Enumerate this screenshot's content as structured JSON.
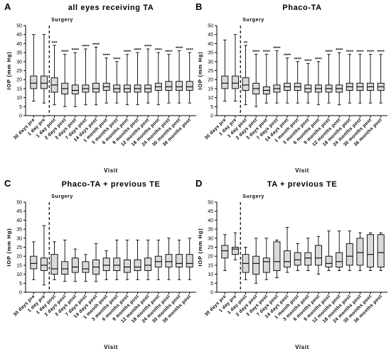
{
  "chart_data": [
    {
      "type": "boxplot",
      "panel_letter": "A",
      "title": "all eyes receiving TA",
      "xlabel": "Visit",
      "ylabel": "IOP (mm Hg)",
      "ylim": [
        0,
        50
      ],
      "yticks": [
        0,
        5,
        10,
        15,
        20,
        25,
        30,
        35,
        40,
        45,
        50
      ],
      "surgery_label": "Surgery",
      "surgery_after_index": 1,
      "categories": [
        "30 days pre",
        "1 day pre",
        "1 day post",
        "2 days post",
        "3 days post",
        "7 days post",
        "14 days post",
        "1 month post",
        "3 months post",
        "6 months post",
        "9 months post",
        "12 months post",
        "18 months post",
        "24 months post",
        "30 months post",
        "36 months post"
      ],
      "boxes": [
        {
          "min": 8,
          "q1": 15,
          "median": 18,
          "q3": 22,
          "max": 45
        },
        {
          "min": 7,
          "q1": 15,
          "median": 18,
          "q3": 22,
          "max": 45
        },
        {
          "min": 6,
          "q1": 13,
          "median": 17,
          "q3": 21,
          "max": 39
        },
        {
          "min": 5,
          "q1": 12,
          "median": 15,
          "q3": 18,
          "max": 34
        },
        {
          "min": 5,
          "q1": 12,
          "median": 14,
          "q3": 17,
          "max": 35
        },
        {
          "min": 6,
          "q1": 13,
          "median": 15,
          "q3": 17,
          "max": 37
        },
        {
          "min": 6,
          "q1": 13,
          "median": 15,
          "q3": 18,
          "max": 38
        },
        {
          "min": 7,
          "q1": 14,
          "median": 16,
          "q3": 18,
          "max": 32
        },
        {
          "min": 7,
          "q1": 13,
          "median": 15,
          "q3": 17,
          "max": 30
        },
        {
          "min": 6,
          "q1": 13,
          "median": 15,
          "q3": 17,
          "max": 34
        },
        {
          "min": 6,
          "q1": 13,
          "median": 15,
          "q3": 17,
          "max": 35
        },
        {
          "min": 7,
          "q1": 13,
          "median": 15,
          "q3": 17,
          "max": 37
        },
        {
          "min": 6,
          "q1": 14,
          "median": 16,
          "q3": 18,
          "max": 35
        },
        {
          "min": 7,
          "q1": 14,
          "median": 16,
          "q3": 19,
          "max": 34
        },
        {
          "min": 7,
          "q1": 14,
          "median": 16,
          "q3": 19,
          "max": 36
        },
        {
          "min": 7,
          "q1": 14,
          "median": 16,
          "q3": 19,
          "max": 35
        }
      ],
      "annotations": [
        "",
        "",
        "***",
        "****",
        "****",
        "****",
        "****",
        "****",
        "****",
        "****",
        "****",
        "****",
        "****",
        "****",
        "****",
        "****"
      ]
    },
    {
      "type": "boxplot",
      "panel_letter": "B",
      "title": "Phaco-TA",
      "xlabel": "Visit",
      "ylabel": "IOP (mm Hg)",
      "ylim": [
        0,
        50
      ],
      "yticks": [
        0,
        5,
        10,
        15,
        20,
        25,
        30,
        35,
        40,
        45,
        50
      ],
      "surgery_label": "Surgery",
      "surgery_after_index": 1,
      "categories": [
        "30 days pre",
        "1 day pre",
        "1 day post",
        "2 days post",
        "3 days post",
        "7 days post",
        "14 days post",
        "1 month post",
        "3 months post",
        "6 months post",
        "9 months post",
        "12 months post",
        "18 months post",
        "24 months post",
        "30 months post",
        "36 months post"
      ],
      "boxes": [
        {
          "min": 8,
          "q1": 15,
          "median": 18,
          "q3": 22,
          "max": 42
        },
        {
          "min": 8,
          "q1": 15,
          "median": 18,
          "q3": 22,
          "max": 45
        },
        {
          "min": 6,
          "q1": 14,
          "median": 17,
          "q3": 21,
          "max": 39
        },
        {
          "min": 5,
          "q1": 12,
          "median": 15,
          "q3": 18,
          "max": 34
        },
        {
          "min": 7,
          "q1": 12,
          "median": 14,
          "q3": 16,
          "max": 34
        },
        {
          "min": 7,
          "q1": 13,
          "median": 15,
          "q3": 17,
          "max": 36
        },
        {
          "min": 7,
          "q1": 14,
          "median": 16,
          "q3": 18,
          "max": 32
        },
        {
          "min": 7,
          "q1": 14,
          "median": 16,
          "q3": 18,
          "max": 30
        },
        {
          "min": 7,
          "q1": 13,
          "median": 15,
          "q3": 17,
          "max": 29
        },
        {
          "min": 6,
          "q1": 13,
          "median": 15,
          "q3": 17,
          "max": 30
        },
        {
          "min": 7,
          "q1": 13,
          "median": 15,
          "q3": 17,
          "max": 34
        },
        {
          "min": 6,
          "q1": 13,
          "median": 15,
          "q3": 17,
          "max": 35
        },
        {
          "min": 7,
          "q1": 14,
          "median": 16,
          "q3": 18,
          "max": 34
        },
        {
          "min": 7,
          "q1": 14,
          "median": 16,
          "q3": 18,
          "max": 34
        },
        {
          "min": 7,
          "q1": 14,
          "median": 16,
          "q3": 18,
          "max": 34
        },
        {
          "min": 7,
          "q1": 14,
          "median": 16,
          "q3": 18,
          "max": 34
        }
      ],
      "annotations": [
        "",
        "",
        "**",
        "****",
        "****",
        "****",
        "****",
        "****",
        "****",
        "****",
        "****",
        "****",
        "****",
        "****",
        "****",
        "****"
      ]
    },
    {
      "type": "boxplot",
      "panel_letter": "C",
      "title": "Phaco-TA + previous TE",
      "xlabel": "Visit",
      "ylabel": "IOP (mm Hg)",
      "ylim": [
        0,
        50
      ],
      "yticks": [
        0,
        5,
        10,
        15,
        20,
        25,
        30,
        35,
        40,
        45,
        50
      ],
      "surgery_label": "Surgery",
      "surgery_after_index": 1,
      "categories": [
        "30 days pre",
        "1 day pre",
        "1 day post",
        "2 days post",
        "3 days post",
        "7 days post",
        "14 days post",
        "1 month post",
        "3 months post",
        "6 months post",
        "9 months post",
        "12 months post",
        "18 months post",
        "24 months post",
        "30 months post",
        "36 months post"
      ],
      "boxes": [
        {
          "min": 7,
          "q1": 13,
          "median": 16,
          "q3": 20,
          "max": 28
        },
        {
          "min": 4,
          "q1": 12,
          "median": 15,
          "q3": 19,
          "max": 37
        },
        {
          "min": 7,
          "q1": 10,
          "median": 13,
          "q3": 21,
          "max": 28
        },
        {
          "min": 6,
          "q1": 10,
          "median": 13,
          "q3": 17,
          "max": 29
        },
        {
          "min": 6,
          "q1": 11,
          "median": 14,
          "q3": 19,
          "max": 24
        },
        {
          "min": 6,
          "q1": 11,
          "median": 13,
          "q3": 17,
          "max": 21
        },
        {
          "min": 6,
          "q1": 10,
          "median": 14,
          "q3": 18,
          "max": 27
        },
        {
          "min": 7,
          "q1": 12,
          "median": 15,
          "q3": 19,
          "max": 23
        },
        {
          "min": 7,
          "q1": 12,
          "median": 15,
          "q3": 19,
          "max": 29
        },
        {
          "min": 7,
          "q1": 11,
          "median": 14,
          "q3": 18,
          "max": 29
        },
        {
          "min": 7,
          "q1": 12,
          "median": 14,
          "q3": 18,
          "max": 29
        },
        {
          "min": 7,
          "q1": 12,
          "median": 15,
          "q3": 19,
          "max": 29
        },
        {
          "min": 7,
          "q1": 14,
          "median": 17,
          "q3": 20,
          "max": 29
        },
        {
          "min": 7,
          "q1": 14,
          "median": 17,
          "q3": 21,
          "max": 30
        },
        {
          "min": 7,
          "q1": 14,
          "median": 16,
          "q3": 21,
          "max": 29
        },
        {
          "min": 7,
          "q1": 14,
          "median": 16,
          "q3": 21,
          "max": 30
        }
      ],
      "annotations": []
    },
    {
      "type": "boxplot",
      "panel_letter": "D",
      "title": "TA + previous TE",
      "xlabel": "Visit",
      "ylabel": "IOP (mm Hg)",
      "ylim": [
        0,
        50
      ],
      "yticks": [
        0,
        5,
        10,
        15,
        20,
        25,
        30,
        35,
        40,
        45,
        50
      ],
      "surgery_label": "Surgery",
      "surgery_after_index": 1,
      "categories": [
        "30 days pre",
        "1 day pre",
        "1 day post",
        "2 days post",
        "3 days post",
        "7 days post",
        "14 days post",
        "1 month post",
        "3 months post",
        "6 months post",
        "9 months post",
        "12 months post",
        "18 months post",
        "24 months post",
        "30 months post",
        "36 months post"
      ],
      "boxes": [
        {
          "min": 12,
          "q1": 19,
          "median": 23,
          "q3": 26,
          "max": 32
        },
        {
          "min": 18,
          "q1": 21,
          "median": 24,
          "q3": 25,
          "max": 33
        },
        {
          "min": 7,
          "q1": 11,
          "median": 16,
          "q3": 21,
          "max": 25
        },
        {
          "min": 5,
          "q1": 10,
          "median": 16,
          "q3": 20,
          "max": 30
        },
        {
          "min": 7,
          "q1": 11,
          "median": 17,
          "q3": 19,
          "max": 30
        },
        {
          "min": 8,
          "q1": 12,
          "median": 17,
          "q3": 28,
          "max": 29
        },
        {
          "min": 11,
          "q1": 14,
          "median": 17,
          "q3": 23,
          "max": 36
        },
        {
          "min": 12,
          "q1": 15,
          "median": 18,
          "q3": 22,
          "max": 27
        },
        {
          "min": 12,
          "q1": 15,
          "median": 19,
          "q3": 22,
          "max": 30
        },
        {
          "min": 10,
          "q1": 15,
          "median": 19,
          "q3": 26,
          "max": 31
        },
        {
          "min": 12,
          "q1": 14,
          "median": 16,
          "q3": 20,
          "max": 34
        },
        {
          "min": 12,
          "q1": 14,
          "median": 17,
          "q3": 22,
          "max": 34
        },
        {
          "min": 12,
          "q1": 15,
          "median": 20,
          "q3": 27,
          "max": 34
        },
        {
          "min": 12,
          "q1": 15,
          "median": 22,
          "q3": 30,
          "max": 33
        },
        {
          "min": 12,
          "q1": 14,
          "median": 21,
          "q3": 32,
          "max": 33
        },
        {
          "min": 12,
          "q1": 14,
          "median": 22,
          "q3": 32,
          "max": 33
        }
      ],
      "annotations": []
    }
  ],
  "colors": {
    "box_fill": "#d9d9d9",
    "line": "#000000"
  }
}
